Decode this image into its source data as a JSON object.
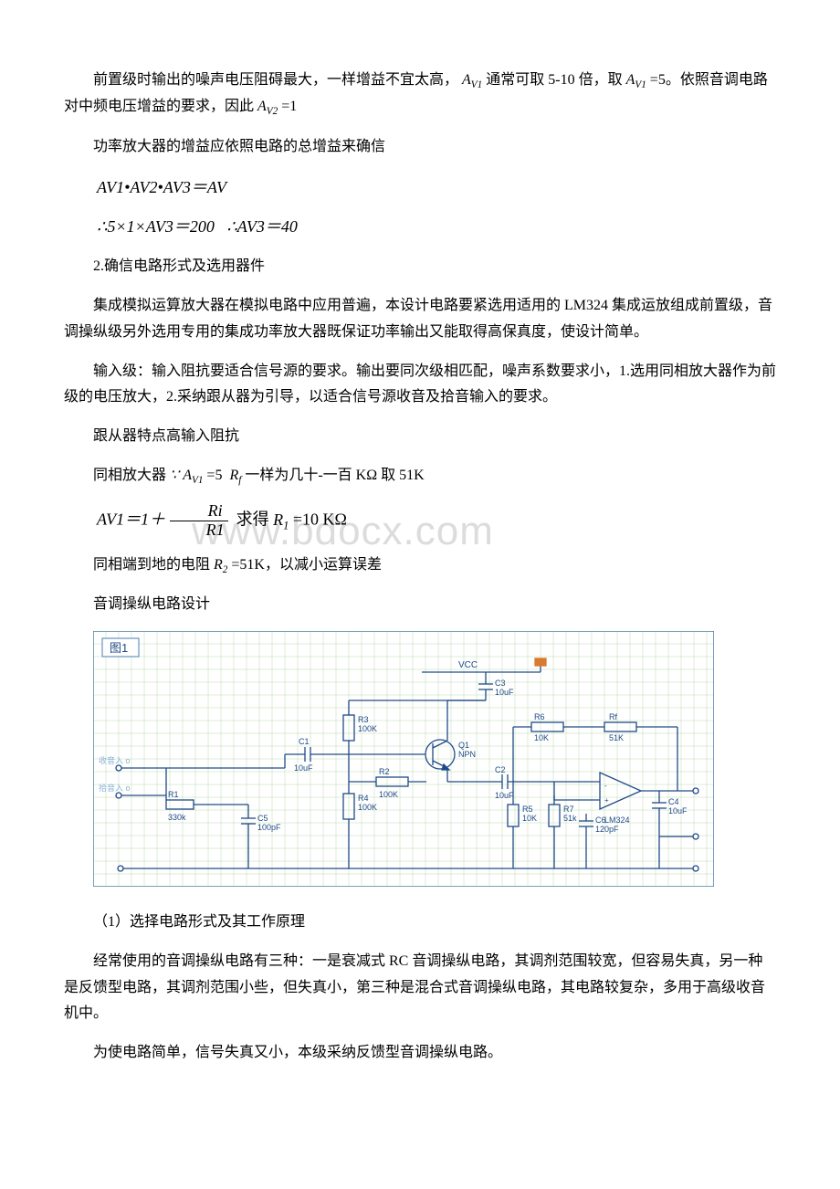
{
  "paragraphs": {
    "p1_a": "前置级时输出的噪声电压阻碍最大，一样增益不宜太高，",
    "p1_b": "通常可取 5-10 倍，取",
    "p1_c": "=5。依照音调电路对中频电压增益的要求，因此",
    "p1_d": "=1",
    "p2": "功率放大器的增益应依照电路的总增益来确信",
    "eq1": "AV1•AV2•AV3＝AV",
    "eq2a": "∴5×1×AV3＝200",
    "eq2b": "∴AV3＝40",
    "p3": "2.确信电路形式及选用器件",
    "p4": "集成模拟运算放大器在模拟电路中应用普遍，本设计电路要紧选用适用的 LM324 集成运放组成前置级，音调操纵级另外选用专用的集成功率放大器既保证功率输出又能取得高保真度，使设计简单。",
    "p5": "输入级：输入阻抗要适合信号源的要求。输出要同次级相匹配，噪声系数要求小，1.选用同相放大器作为前级的电压放大，2.采纳跟从器为引导，以适合信号源收音及拾音输入的要求。",
    "p6": "跟从器特点高输入阻抗",
    "p7_a": "同相放大器",
    "p7_b": "=5",
    "p7_c": "一样为几十-一百 KΩ 取 51K",
    "eq3_lead": "AV1＝1＋",
    "eq3_num": "Ri",
    "eq3_den": "R1",
    "eq3_tail_a": "求得",
    "eq3_tail_b": "=10 KΩ",
    "p8_a": "同相端到地的电阻",
    "p8_b": "=51K，以减小运算误差",
    "p9": "音调操纵电路设计",
    "p10": "（1）选择电路形式及其工作原理",
    "p11": "经常使用的音调操纵电路有三种：一是衰减式 RC 音调操纵电路，其调剂范围较宽，但容易失真，另一种是反馈型电路，其调剂范围小些，但失真小，第三种是混合式音调操纵电路，其电路较复杂，多用于高级收音机中。",
    "p12": "为使电路简单，信号失真又小，本级采纳反馈型音调操纵电路。"
  },
  "symbols": {
    "AV1": "A",
    "AV1sub": "V1",
    "AV2": "A",
    "AV2sub": "V2",
    "Rf": "R",
    "Rfsub": "f",
    "R1": "R",
    "R1sub": "1",
    "R2": "R",
    "R2sub": "2",
    "because": "∵"
  },
  "watermark": "www.bdocx.com",
  "diagram": {
    "title": "图1",
    "grid_color": "#6aa84f",
    "border_color": "#4a7db0",
    "background": "#ffffff",
    "label_color": "#204a87",
    "wire_color": "#204a87",
    "input1": "收音入 o",
    "input2": "拾音入 o",
    "components": {
      "VCC": "VCC",
      "C3": {
        "name": "C3",
        "val": "10uF"
      },
      "R3": {
        "name": "R3",
        "val": "100K"
      },
      "R6": {
        "name": "R6",
        "val": "10K"
      },
      "Rf": {
        "name": "Rf",
        "val": "51K"
      },
      "C1": {
        "name": "C1",
        "val": "10uF"
      },
      "Q1": {
        "name": "Q1",
        "val": "NPN"
      },
      "R2": {
        "name": "R2",
        "val": "100K"
      },
      "C2": {
        "name": "C2",
        "val": "10uF"
      },
      "R1": {
        "name": "R1",
        "val": "330k"
      },
      "R4": {
        "name": "R4",
        "val": "100K"
      },
      "C5": {
        "name": "C5",
        "val": "100pF"
      },
      "R5": {
        "name": "R5",
        "val": "10K"
      },
      "R7": {
        "name": "R7",
        "val": "51k"
      },
      "C6": {
        "name": "C6",
        "val": "120pF"
      },
      "LM324": "LM324",
      "C4": {
        "name": "C4",
        "val": "10uF"
      }
    }
  }
}
